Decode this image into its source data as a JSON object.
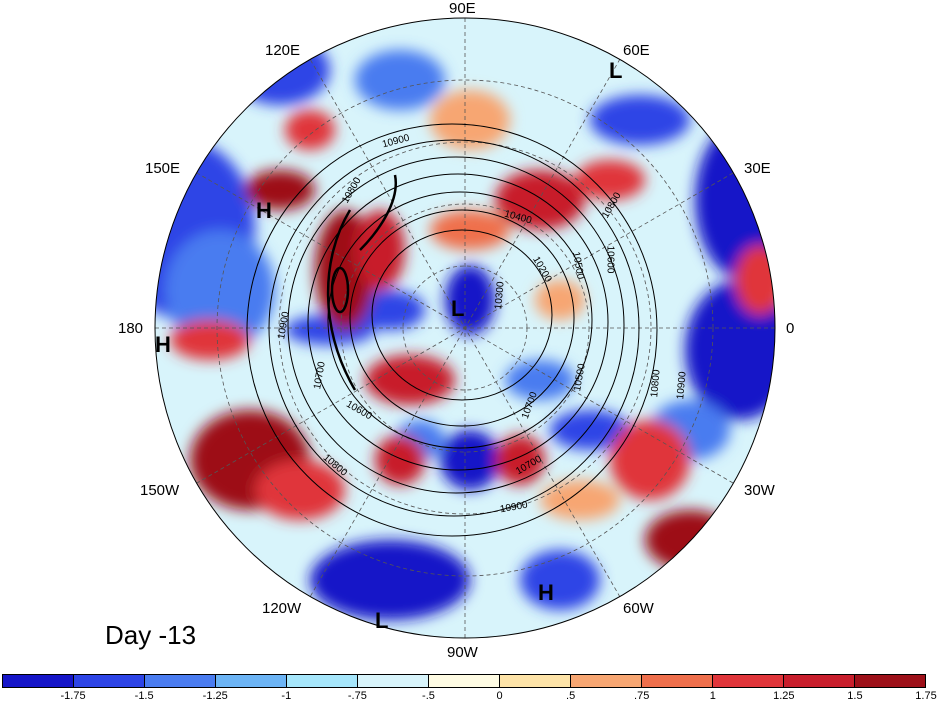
{
  "title": "Day -13",
  "longitude_labels": [
    {
      "text": "90E",
      "pos": "top"
    },
    {
      "text": "60E",
      "pos": "top-right"
    },
    {
      "text": "30E",
      "pos": "right-upper"
    },
    {
      "text": "0",
      "pos": "right"
    },
    {
      "text": "30W",
      "pos": "right-lower"
    },
    {
      "text": "60W",
      "pos": "bottom-right"
    },
    {
      "text": "90W",
      "pos": "bottom"
    },
    {
      "text": "120W",
      "pos": "bottom-left"
    },
    {
      "text": "150W",
      "pos": "left-lower"
    },
    {
      "text": "180",
      "pos": "left"
    },
    {
      "text": "150E",
      "pos": "left-upper"
    },
    {
      "text": "120E",
      "pos": "top-left"
    }
  ],
  "pressure_centers": [
    {
      "type": "L",
      "location": "north pole region"
    },
    {
      "type": "L",
      "location": "near 60E edge"
    },
    {
      "type": "L",
      "location": "near 90W-120W edge"
    },
    {
      "type": "H",
      "location": "near 150E"
    },
    {
      "type": "H",
      "location": "near 180 edge"
    },
    {
      "type": "H",
      "location": "near 60W"
    }
  ],
  "contour_labels": [
    "10900",
    "10800",
    "10700",
    "10600",
    "10500",
    "10400",
    "10300",
    "10200",
    "10900",
    "10800",
    "10700",
    "10600",
    "10500",
    "10800",
    "10900",
    "10700",
    "10800",
    "10900"
  ],
  "colorbar": {
    "colors": [
      "#1515c8",
      "#2d44e6",
      "#4a7cf0",
      "#6cb4f5",
      "#a6e6fb",
      "#d8f4fb",
      "#fefbe3",
      "#fde3a8",
      "#f7a672",
      "#ef6f4c",
      "#e0353a",
      "#c81e2c",
      "#9d1019"
    ],
    "tick_labels": [
      "-1.75",
      "-1.5",
      "-1.25",
      "-1",
      "-.75",
      "-.5",
      "0",
      ".5",
      ".75",
      "1",
      "1.25",
      "1.5",
      "1.75"
    ]
  }
}
